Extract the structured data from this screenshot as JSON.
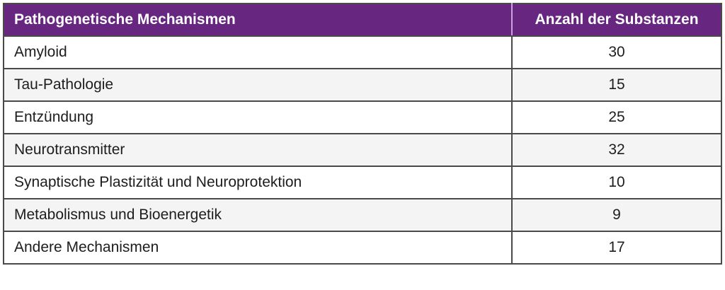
{
  "table": {
    "columns": [
      "Pathogenetische Mechanismen",
      "Anzahl der Substanzen"
    ],
    "rows": [
      {
        "mechanism": "Amyloid",
        "count": "30"
      },
      {
        "mechanism": "Tau-Pathologie",
        "count": "15"
      },
      {
        "mechanism": "Entzündung",
        "count": "25"
      },
      {
        "mechanism": "Neurotransmitter",
        "count": "32"
      },
      {
        "mechanism": "Synaptische Plastizität und Neuroprotektion",
        "count": "10"
      },
      {
        "mechanism": "Metabolismus und Bioenergetik",
        "count": "9"
      },
      {
        "mechanism": "Andere Mechanismen",
        "count": "17"
      }
    ]
  },
  "colors": {
    "header_bg": "#672680",
    "header_text": "#ffffff",
    "header_divider": "#cda2dc",
    "border": "#4a4a4a",
    "alt_row_bg": "#f5f4f5",
    "row_bg": "#ffffff",
    "body_text": "#1d1d1f"
  },
  "chart_data": {
    "type": "table",
    "title": "",
    "columns": [
      "Pathogenetische Mechanismen",
      "Anzahl der Substanzen"
    ],
    "categories": [
      "Amyloid",
      "Tau-Pathologie",
      "Entzündung",
      "Neurotransmitter",
      "Synaptische Plastizität und Neuroprotektion",
      "Metabolismus und Bioenergetik",
      "Andere Mechanismen"
    ],
    "values": [
      30,
      15,
      25,
      32,
      10,
      9,
      17
    ]
  }
}
